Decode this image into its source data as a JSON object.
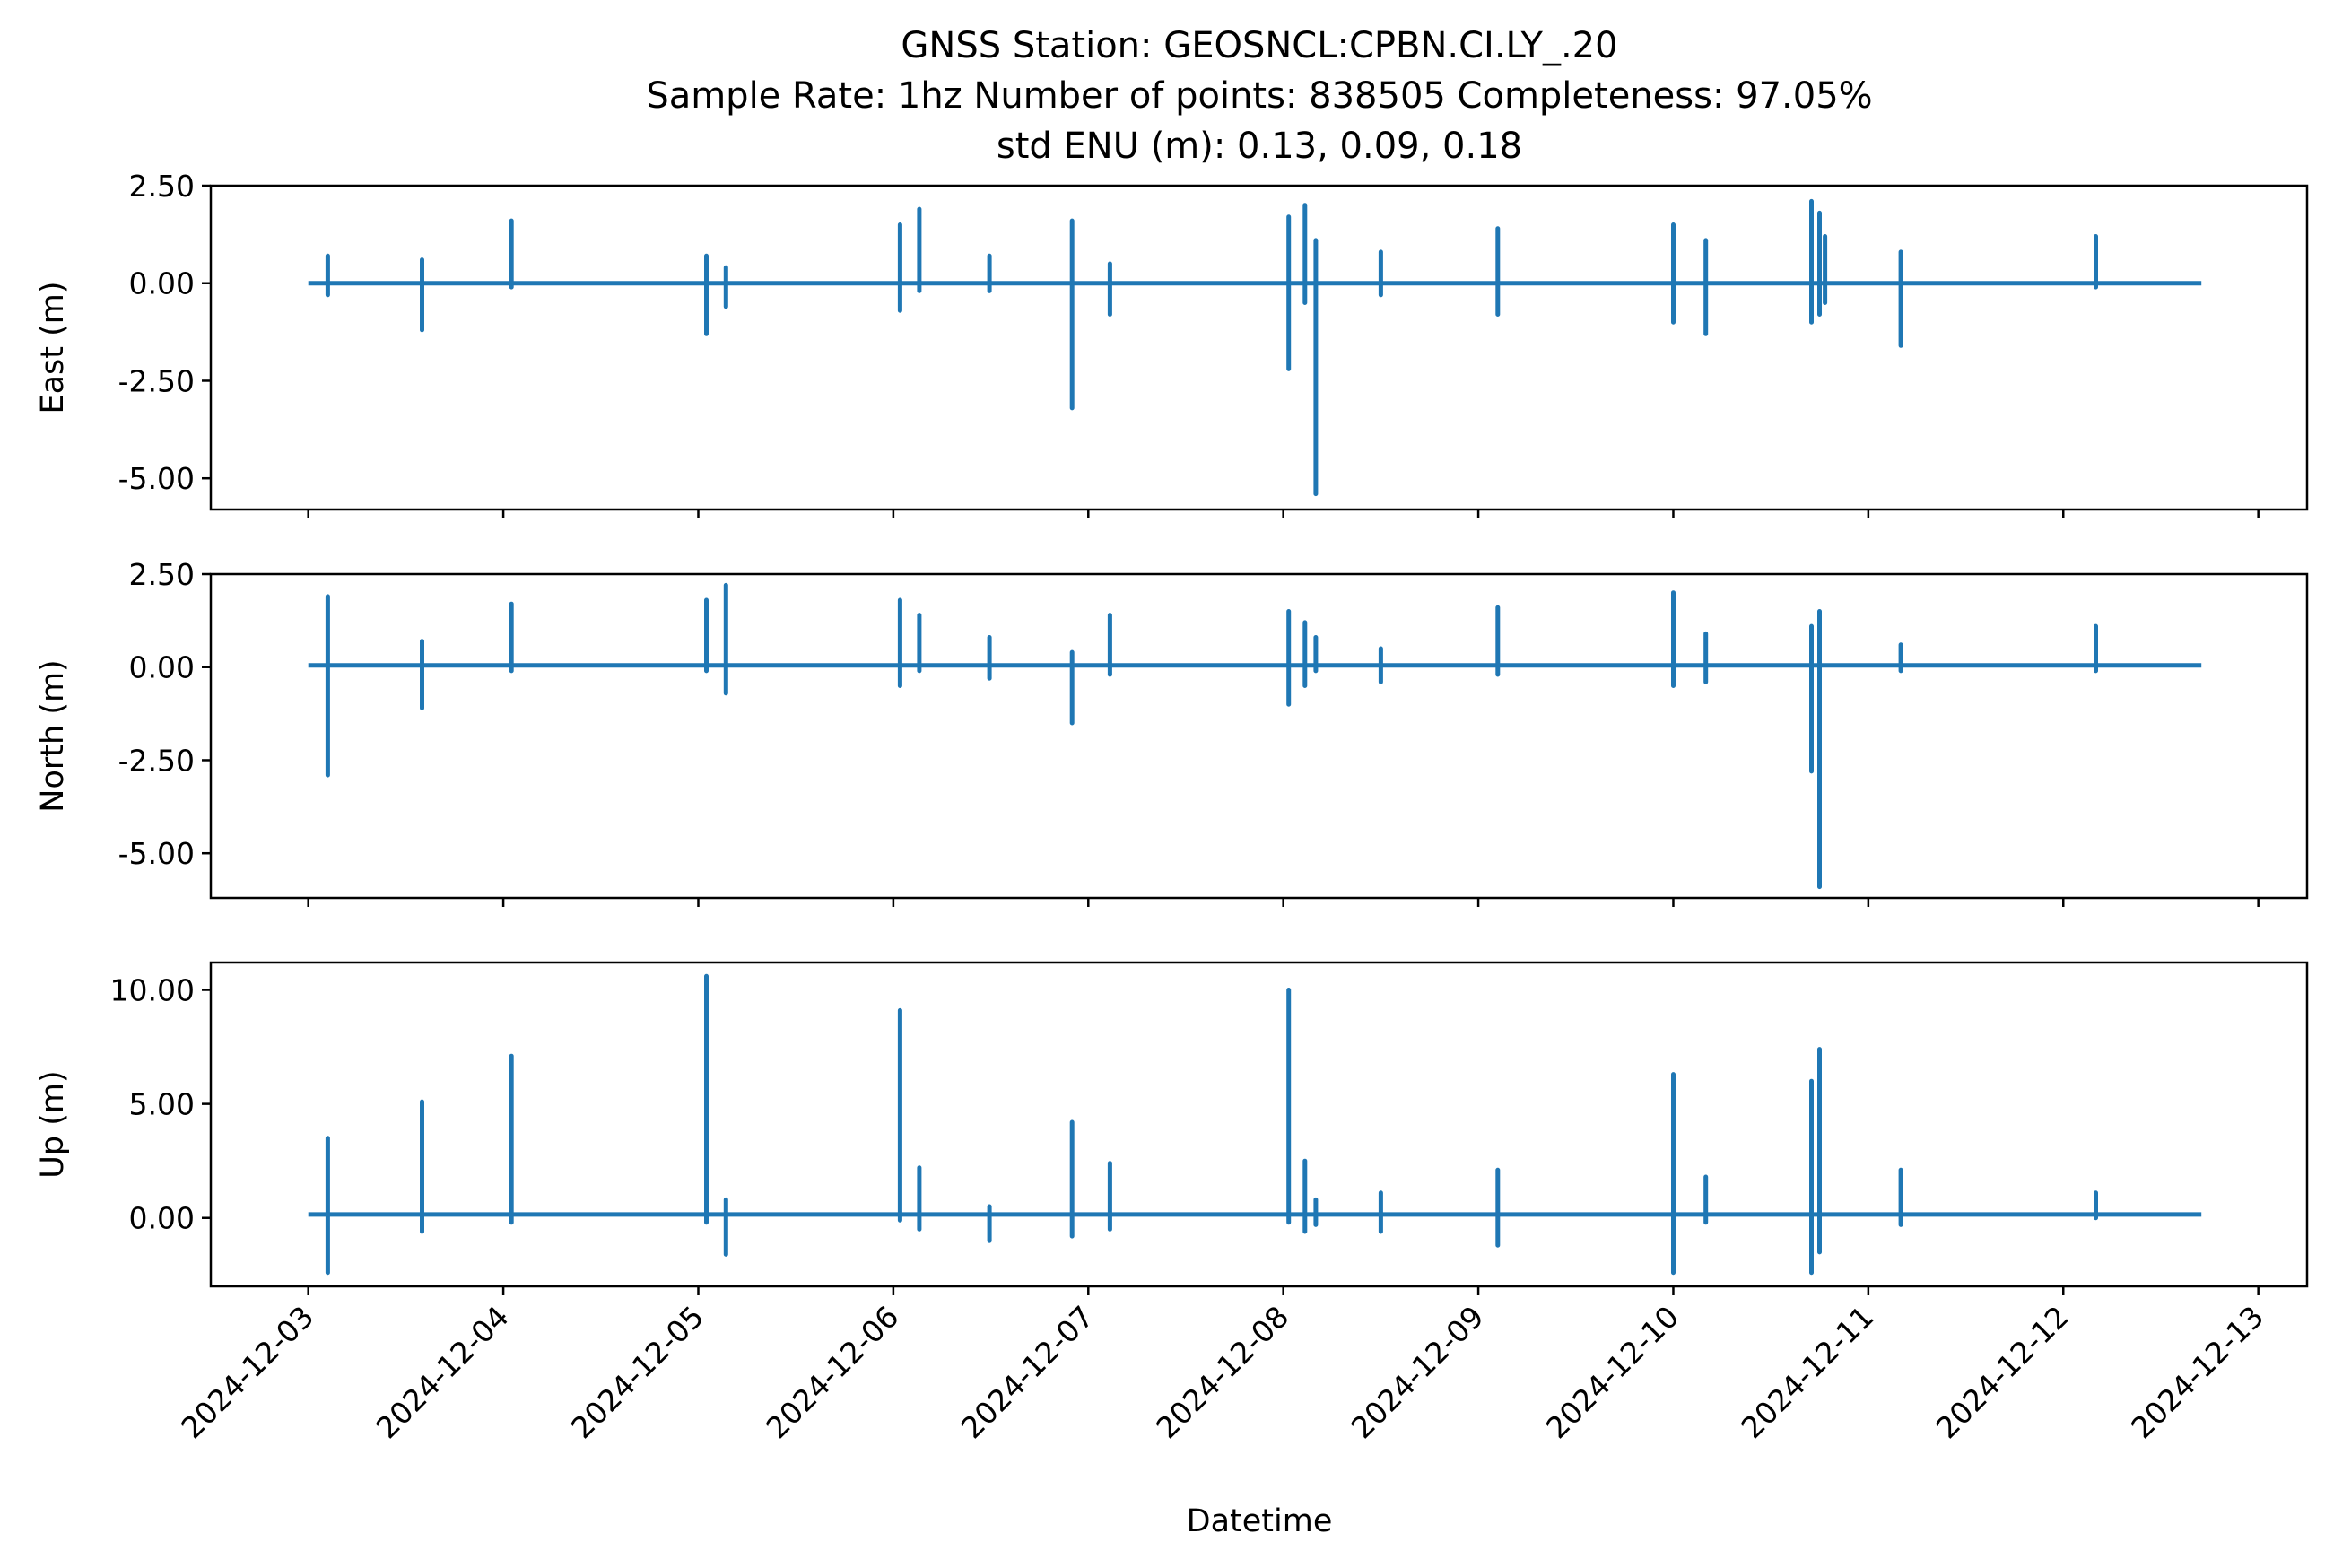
{
  "chart_data": {
    "type": "line",
    "title_lines": [
      "GNSS Station: GEOSNCL:CPBN.CI.LY_.20",
      "Sample Rate: 1hz   Number of points: 838505    Completeness:  97.05%",
      "std ENU (m):  0.13, 0.09, 0.18"
    ],
    "xlabel": "Datetime",
    "x_ticks": [
      "2024-12-03",
      "2024-12-04",
      "2024-12-05",
      "2024-12-06",
      "2024-12-07",
      "2024-12-08",
      "2024-12-09",
      "2024-12-10",
      "2024-12-11",
      "2024-12-12",
      "2024-12-13"
    ],
    "x_range": [
      "2024-12-02T12:00:00",
      "2024-12-13T06:00:00"
    ],
    "data_span": [
      "2024-12-03T00:00:00",
      "2024-12-12T17:00:00"
    ],
    "color": "#1f77b4",
    "panels": [
      {
        "ylabel": "East (m)",
        "ylim": [
          -5.8,
          2.5
        ],
        "y_ticks": [
          2.5,
          0.0,
          -2.5,
          -5.0
        ],
        "y_tick_labels": [
          "2.50",
          "0.00",
          "-2.50",
          "-5.00"
        ],
        "baseline": 0.0,
        "spikes": [
          {
            "t": "2024-12-03T02:24:00",
            "min": -0.3,
            "max": 0.7
          },
          {
            "t": "2024-12-03T14:00:00",
            "min": -1.2,
            "max": 0.6
          },
          {
            "t": "2024-12-04T01:00:00",
            "min": -0.1,
            "max": 1.6
          },
          {
            "t": "2024-12-05T01:00:00",
            "min": -1.3,
            "max": 0.7
          },
          {
            "t": "2024-12-05T03:24:00",
            "min": -0.6,
            "max": 0.4
          },
          {
            "t": "2024-12-06T00:50:00",
            "min": -0.7,
            "max": 1.5
          },
          {
            "t": "2024-12-06T03:12:00",
            "min": -0.2,
            "max": 1.9
          },
          {
            "t": "2024-12-06T11:50:00",
            "min": -0.2,
            "max": 0.7
          },
          {
            "t": "2024-12-06T22:00:00",
            "min": -3.2,
            "max": 1.6
          },
          {
            "t": "2024-12-07T02:40:00",
            "min": -0.8,
            "max": 0.5
          },
          {
            "t": "2024-12-08T00:40:00",
            "min": -2.2,
            "max": 1.7
          },
          {
            "t": "2024-12-08T02:40:00",
            "min": -0.5,
            "max": 2.0
          },
          {
            "t": "2024-12-08T04:00:00",
            "min": -5.4,
            "max": 1.1
          },
          {
            "t": "2024-12-08T12:00:00",
            "min": -0.3,
            "max": 0.8
          },
          {
            "t": "2024-12-09T02:24:00",
            "min": -0.8,
            "max": 1.4
          },
          {
            "t": "2024-12-10T00:00:00",
            "min": -1.0,
            "max": 1.5
          },
          {
            "t": "2024-12-10T04:00:00",
            "min": -1.3,
            "max": 1.1
          },
          {
            "t": "2024-12-10T17:00:00",
            "min": -1.0,
            "max": 2.1
          },
          {
            "t": "2024-12-10T18:00:00",
            "min": -0.8,
            "max": 1.8
          },
          {
            "t": "2024-12-10T18:40:00",
            "min": -0.5,
            "max": 1.2
          },
          {
            "t": "2024-12-11T04:00:00",
            "min": -1.6,
            "max": 0.8
          },
          {
            "t": "2024-12-12T04:00:00",
            "min": -0.1,
            "max": 1.2
          }
        ]
      },
      {
        "ylabel": "North (m)",
        "ylim": [
          -6.2,
          2.5
        ],
        "y_ticks": [
          2.5,
          0.0,
          -2.5,
          -5.0
        ],
        "y_tick_labels": [
          "2.50",
          "0.00",
          "-2.50",
          "-5.00"
        ],
        "baseline": 0.05,
        "spikes": [
          {
            "t": "2024-12-03T02:24:00",
            "min": -2.9,
            "max": 1.9
          },
          {
            "t": "2024-12-03T14:00:00",
            "min": -1.1,
            "max": 0.7
          },
          {
            "t": "2024-12-04T01:00:00",
            "min": -0.1,
            "max": 1.7
          },
          {
            "t": "2024-12-05T01:00:00",
            "min": -0.1,
            "max": 1.8
          },
          {
            "t": "2024-12-05T03:24:00",
            "min": -0.7,
            "max": 2.2
          },
          {
            "t": "2024-12-06T00:50:00",
            "min": -0.5,
            "max": 1.8
          },
          {
            "t": "2024-12-06T03:12:00",
            "min": -0.1,
            "max": 1.4
          },
          {
            "t": "2024-12-06T11:50:00",
            "min": -0.3,
            "max": 0.8
          },
          {
            "t": "2024-12-06T22:00:00",
            "min": -1.5,
            "max": 0.4
          },
          {
            "t": "2024-12-07T02:40:00",
            "min": -0.2,
            "max": 1.4
          },
          {
            "t": "2024-12-08T00:40:00",
            "min": -1.0,
            "max": 1.5
          },
          {
            "t": "2024-12-08T02:40:00",
            "min": -0.5,
            "max": 1.2
          },
          {
            "t": "2024-12-08T04:00:00",
            "min": -0.1,
            "max": 0.8
          },
          {
            "t": "2024-12-08T12:00:00",
            "min": -0.4,
            "max": 0.5
          },
          {
            "t": "2024-12-09T02:24:00",
            "min": -0.2,
            "max": 1.6
          },
          {
            "t": "2024-12-10T00:00:00",
            "min": -0.5,
            "max": 2.0
          },
          {
            "t": "2024-12-10T04:00:00",
            "min": -0.4,
            "max": 0.9
          },
          {
            "t": "2024-12-10T17:00:00",
            "min": -2.8,
            "max": 1.1
          },
          {
            "t": "2024-12-10T18:00:00",
            "min": -5.9,
            "max": 1.5
          },
          {
            "t": "2024-12-11T04:00:00",
            "min": -0.1,
            "max": 0.6
          },
          {
            "t": "2024-12-12T04:00:00",
            "min": -0.1,
            "max": 1.1
          }
        ]
      },
      {
        "ylabel": "Up (m)",
        "ylim": [
          -3.0,
          11.2
        ],
        "y_ticks": [
          10.0,
          5.0,
          0.0
        ],
        "y_tick_labels": [
          "10.00",
          "5.00",
          "0.00"
        ],
        "baseline": 0.15,
        "spikes": [
          {
            "t": "2024-12-03T02:24:00",
            "min": -2.4,
            "max": 3.5
          },
          {
            "t": "2024-12-03T14:00:00",
            "min": -0.6,
            "max": 5.1
          },
          {
            "t": "2024-12-04T01:00:00",
            "min": -0.2,
            "max": 7.1
          },
          {
            "t": "2024-12-05T01:00:00",
            "min": -0.2,
            "max": 10.6
          },
          {
            "t": "2024-12-05T03:24:00",
            "min": -1.6,
            "max": 0.8
          },
          {
            "t": "2024-12-06T00:50:00",
            "min": -0.1,
            "max": 9.1
          },
          {
            "t": "2024-12-06T03:12:00",
            "min": -0.5,
            "max": 2.2
          },
          {
            "t": "2024-12-06T11:50:00",
            "min": -1.0,
            "max": 0.5
          },
          {
            "t": "2024-12-06T22:00:00",
            "min": -0.8,
            "max": 4.2
          },
          {
            "t": "2024-12-07T02:40:00",
            "min": -0.5,
            "max": 2.4
          },
          {
            "t": "2024-12-08T00:40:00",
            "min": -0.2,
            "max": 10.0
          },
          {
            "t": "2024-12-08T02:40:00",
            "min": -0.6,
            "max": 2.5
          },
          {
            "t": "2024-12-08T04:00:00",
            "min": -0.3,
            "max": 0.8
          },
          {
            "t": "2024-12-08T12:00:00",
            "min": -0.6,
            "max": 1.1
          },
          {
            "t": "2024-12-09T02:24:00",
            "min": -1.2,
            "max": 2.1
          },
          {
            "t": "2024-12-10T00:00:00",
            "min": -2.4,
            "max": 6.3
          },
          {
            "t": "2024-12-10T04:00:00",
            "min": -0.2,
            "max": 1.8
          },
          {
            "t": "2024-12-10T17:00:00",
            "min": -2.4,
            "max": 6.0
          },
          {
            "t": "2024-12-10T18:00:00",
            "min": -1.5,
            "max": 7.4
          },
          {
            "t": "2024-12-11T04:00:00",
            "min": -0.3,
            "max": 2.1
          },
          {
            "t": "2024-12-12T04:00:00",
            "min": 0.0,
            "max": 1.1
          }
        ]
      }
    ]
  }
}
